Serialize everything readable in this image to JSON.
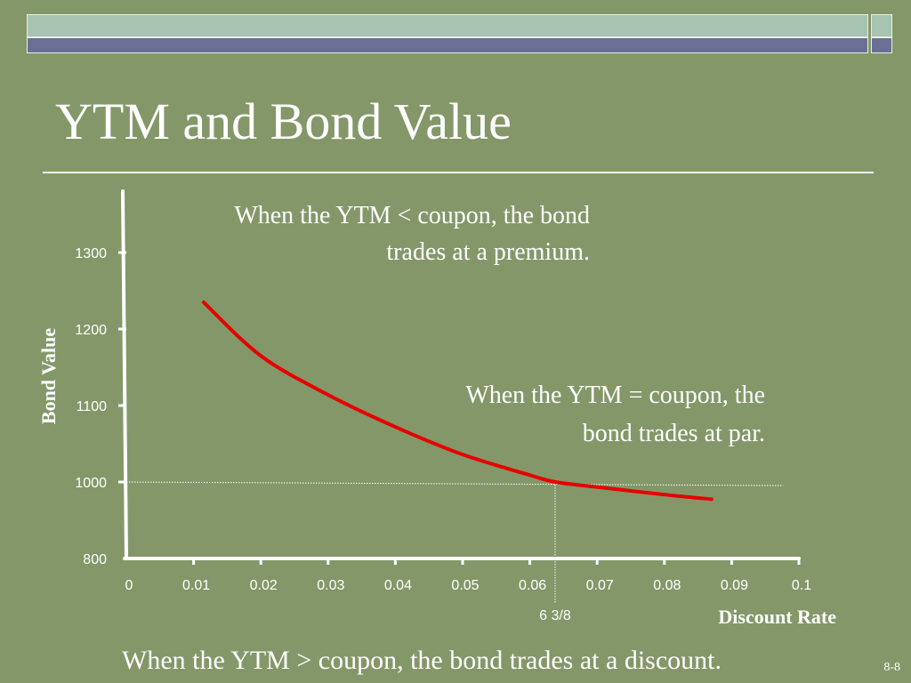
{
  "slide": {
    "title": "YTM and Bond Value",
    "slide_number": "8-8",
    "footer_text": "When the YTM > coupon, the bond trades at a discount."
  },
  "chart_data": {
    "type": "line",
    "xlabel": "Discount Rate",
    "ylabel": "Bond Value",
    "x_ticks": [
      "0",
      "0.01",
      "0.02",
      "0.03",
      "0.04",
      "0.05",
      "0.06",
      "0.07",
      "0.08",
      "0.09",
      "0.1"
    ],
    "y_ticks": [
      "800",
      "1000",
      "1100",
      "1200",
      "1300"
    ],
    "xlim": [
      0,
      0.1
    ],
    "y_scale_breaks": {
      "800": 800,
      "1000": 1000,
      "1100": 1100,
      "1200": 1200,
      "1300": 1300
    },
    "series": [
      {
        "color": "#e60000",
        "x": [
          0.0115,
          0.02,
          0.03,
          0.04,
          0.05,
          0.06,
          0.0638,
          0.07,
          0.08,
          0.087
        ],
        "y": [
          1235,
          1165,
          1114,
          1072,
          1036,
          1009,
          1000,
          987,
          967,
          955
        ]
      }
    ],
    "par_marker": {
      "x": 0.06375,
      "y": 1000,
      "label": "6 3/8",
      "reference_x_end": 0.099
    },
    "annotations": [
      {
        "name": "premium-annotation",
        "lines": [
          "When the YTM < coupon, the bond",
          "trades at a premium."
        ]
      },
      {
        "name": "par-annotation",
        "lines": [
          "When the YTM = coupon, the",
          "bond trades at par."
        ]
      }
    ],
    "colors": {
      "axis": "#ffffff",
      "curve": "#e60000",
      "guide": "#ffffff"
    }
  }
}
